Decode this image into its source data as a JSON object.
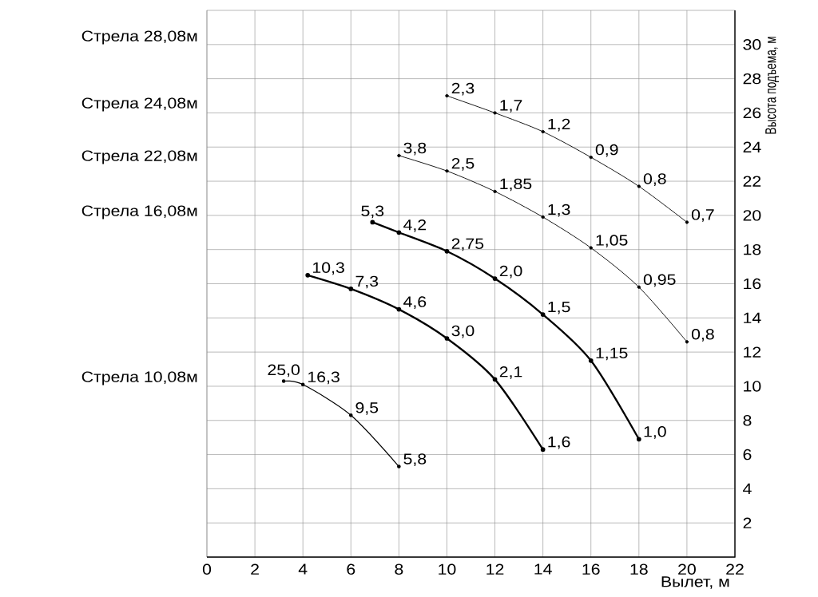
{
  "chart_data": {
    "type": "line",
    "xlabel": "Вылет, м",
    "ylabel": "Высота подъема, м",
    "xlim": [
      0,
      22
    ],
    "ylim": [
      0,
      32
    ],
    "xticks": [
      0,
      2,
      4,
      6,
      8,
      10,
      12,
      14,
      16,
      18,
      20,
      22
    ],
    "yticks": [
      2,
      4,
      6,
      8,
      10,
      12,
      14,
      16,
      18,
      20,
      22,
      24,
      26,
      28,
      30
    ],
    "grid": true,
    "marker": "circle",
    "line_style": "solid",
    "annotations": [
      "Стрела 28,08м",
      "Стрела 24,08м",
      "Стрела 22,08м",
      "Стрела 16,08м",
      "Стрела 10,08м",
      {
        "text": "2,3",
        "x": 10,
        "y": 27.0
      },
      {
        "text": "1,7",
        "x": 12,
        "y": 26.0
      },
      {
        "text": "1,2",
        "x": 14,
        "y": 24.9
      },
      {
        "text": "0,9",
        "x": 16,
        "y": 23.4
      },
      {
        "text": "0,8",
        "x": 18,
        "y": 21.7
      },
      {
        "text": "0,7",
        "x": 20,
        "y": 19.6
      },
      {
        "text": "3,8",
        "x": 8,
        "y": 23.5
      },
      {
        "text": "2,5",
        "x": 10,
        "y": 22.6
      },
      {
        "text": "1,85",
        "x": 12,
        "y": 21.4
      },
      {
        "text": "1,3",
        "x": 14,
        "y": 19.9
      },
      {
        "text": "1,05",
        "x": 16,
        "y": 18.1
      },
      {
        "text": "0,95",
        "x": 18,
        "y": 15.8
      },
      {
        "text": "0,8",
        "x": 20,
        "y": 12.6
      },
      {
        "text": "5,3",
        "x": 6.9,
        "y": 19.6
      },
      {
        "text": "4,2",
        "x": 8,
        "y": 19.0
      },
      {
        "text": "2,75",
        "x": 10,
        "y": 17.9
      },
      {
        "text": "2,0",
        "x": 12,
        "y": 16.3
      },
      {
        "text": "1,5",
        "x": 14,
        "y": 14.2
      },
      {
        "text": "1,15",
        "x": 16,
        "y": 11.5
      },
      {
        "text": "1,0",
        "x": 18,
        "y": 6.9
      },
      {
        "text": "10,3",
        "x": 4.2,
        "y": 16.5
      },
      {
        "text": "7,3",
        "x": 6,
        "y": 15.7
      },
      {
        "text": "4,6",
        "x": 8,
        "y": 14.5
      },
      {
        "text": "3,0",
        "x": 10,
        "y": 12.8
      },
      {
        "text": "2,1",
        "x": 12,
        "y": 10.4
      },
      {
        "text": "1,6",
        "x": 14,
        "y": 6.3
      },
      {
        "text": "25,0",
        "x": 3.2,
        "y": 10.3
      },
      {
        "text": "16,3",
        "x": 4,
        "y": 10.1
      },
      {
        "text": "9,5",
        "x": 6,
        "y": 8.3
      },
      {
        "text": "5,8",
        "x": 8,
        "y": 5.3
      }
    ],
    "series": [
      {
        "color": "#000000",
        "x": [
          10,
          12,
          14,
          16,
          18,
          20
        ],
        "values": [
          27.0,
          26.0,
          24.9,
          23.4,
          21.7,
          19.6
        ]
      },
      {
        "color": "#000000",
        "x": [
          8,
          10,
          12,
          14,
          16,
          18,
          20
        ],
        "values": [
          23.5,
          22.6,
          21.4,
          19.9,
          18.1,
          15.8,
          12.6
        ]
      },
      {
        "color": "#000000",
        "x": [
          6.9,
          8,
          10,
          12,
          14,
          16,
          18
        ],
        "values": [
          19.6,
          19.0,
          17.9,
          16.3,
          14.2,
          11.5,
          6.9
        ]
      },
      {
        "color": "#000000",
        "x": [
          4.2,
          6,
          8,
          10,
          12,
          14
        ],
        "values": [
          16.5,
          15.7,
          14.5,
          12.8,
          10.4,
          6.3
        ]
      },
      {
        "color": "#000000",
        "x": [
          3.2,
          4,
          6,
          8
        ],
        "values": [
          10.3,
          10.1,
          8.3,
          5.3
        ]
      }
    ]
  }
}
